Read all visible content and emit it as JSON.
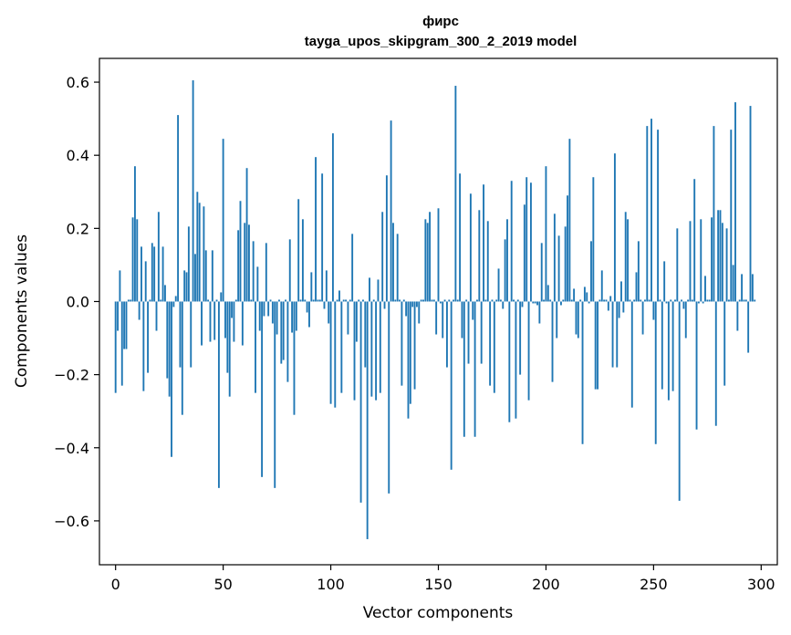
{
  "chart_data": {
    "type": "bar",
    "title": "фирс",
    "subtitle": "tayga_upos_skipgram_300_2_2019 model",
    "xlabel": "Vector components",
    "ylabel": "Components values",
    "xlim": [
      -7.5,
      307.5
    ],
    "ylim": [
      -0.72,
      0.665
    ],
    "xticks": [
      0,
      50,
      100,
      150,
      200,
      250,
      300
    ],
    "xtick_labels": [
      "0",
      "50",
      "100",
      "150",
      "200",
      "250",
      "300"
    ],
    "yticks": [
      -0.6,
      -0.4,
      -0.2,
      0.0,
      0.2,
      0.4,
      0.6
    ],
    "ytick_labels": [
      "−0.6",
      "−0.4",
      "−0.2",
      "0.0",
      "0.2",
      "0.4",
      "0.6"
    ],
    "bar_color": "#1f77b4",
    "values": [
      -0.25,
      -0.08,
      0.085,
      -0.23,
      -0.13,
      -0.13,
      0.005,
      0.005,
      0.23,
      0.37,
      0.225,
      -0.05,
      0.15,
      -0.245,
      0.11,
      -0.195,
      0.005,
      0.16,
      0.15,
      -0.08,
      0.245,
      0.005,
      0.15,
      0.045,
      -0.21,
      -0.26,
      -0.425,
      -0.015,
      0.015,
      0.51,
      -0.18,
      -0.31,
      0.085,
      0.08,
      0.205,
      -0.18,
      0.605,
      0.13,
      0.3,
      0.27,
      -0.12,
      0.26,
      0.14,
      0.005,
      -0.11,
      0.14,
      -0.105,
      0.005,
      -0.51,
      0.025,
      0.445,
      -0.1,
      -0.195,
      -0.26,
      -0.045,
      -0.11,
      0.005,
      0.195,
      0.275,
      -0.12,
      0.215,
      0.365,
      0.21,
      0.005,
      0.165,
      -0.25,
      0.095,
      -0.08,
      -0.48,
      -0.04,
      0.16,
      -0.04,
      0.005,
      -0.06,
      -0.51,
      -0.09,
      0.005,
      -0.17,
      -0.16,
      0.005,
      -0.22,
      0.17,
      -0.085,
      -0.31,
      -0.08,
      0.28,
      0.005,
      0.225,
      0.005,
      -0.03,
      -0.07,
      0.08,
      0.005,
      0.395,
      0.005,
      0.005,
      0.35,
      -0.02,
      0.085,
      -0.06,
      -0.28,
      0.46,
      -0.29,
      0.005,
      0.03,
      -0.25,
      0.005,
      0.005,
      -0.09,
      0.005,
      0.185,
      -0.27,
      -0.11,
      0.005,
      -0.55,
      0.005,
      -0.18,
      -0.65,
      0.065,
      -0.26,
      0.005,
      -0.27,
      0.06,
      -0.25,
      0.245,
      -0.02,
      0.345,
      -0.525,
      0.495,
      0.215,
      0.005,
      0.185,
      0.005,
      -0.23,
      0.005,
      -0.04,
      -0.32,
      -0.28,
      -0.015,
      -0.24,
      -0.015,
      -0.06,
      0.005,
      0.005,
      0.225,
      0.215,
      0.245,
      0.005,
      0.005,
      -0.09,
      0.255,
      -0.005,
      -0.1,
      0.005,
      -0.18,
      0.005,
      -0.46,
      0.005,
      0.59,
      0.005,
      0.35,
      -0.1,
      -0.37,
      0.005,
      -0.17,
      0.295,
      -0.05,
      -0.37,
      0.005,
      0.25,
      -0.17,
      0.32,
      0.005,
      0.22,
      -0.23,
      0.005,
      -0.25,
      0.005,
      0.09,
      0.005,
      -0.02,
      0.17,
      0.225,
      -0.33,
      0.33,
      0.005,
      -0.32,
      0.005,
      -0.2,
      -0.015,
      0.265,
      0.34,
      -0.27,
      0.325,
      -0.005,
      -0.005,
      -0.01,
      -0.06,
      0.16,
      0.005,
      0.37,
      0.045,
      0.005,
      -0.22,
      0.24,
      -0.1,
      0.18,
      -0.01,
      0.005,
      0.205,
      0.29,
      0.445,
      0.005,
      0.035,
      -0.09,
      -0.1,
      0.005,
      -0.39,
      0.04,
      0.025,
      -0.005,
      0.165,
      0.34,
      -0.24,
      -0.24,
      0.005,
      0.085,
      0.005,
      0.005,
      -0.025,
      0.015,
      -0.18,
      0.405,
      -0.18,
      -0.045,
      0.055,
      -0.03,
      0.245,
      0.225,
      0.005,
      -0.29,
      0.005,
      0.08,
      0.165,
      0.005,
      -0.09,
      0.005,
      0.48,
      0.005,
      0.5,
      -0.05,
      -0.39,
      0.47,
      0.005,
      -0.24,
      0.11,
      -0.005,
      -0.27,
      0.005,
      -0.245,
      0.005,
      0.2,
      -0.545,
      0.005,
      -0.02,
      -0.1,
      0.005,
      0.22,
      0.005,
      0.335,
      -0.35,
      -0.005,
      0.225,
      -0.005,
      0.07,
      0.005,
      0.005,
      0.23,
      0.48,
      -0.34,
      0.25,
      0.25,
      0.215,
      -0.23,
      0.2,
      0.005,
      0.47,
      0.1,
      0.545,
      -0.08,
      0.005,
      0.075,
      0.005,
      0.005,
      -0.14,
      0.535,
      0.075,
      0.005
    ]
  }
}
